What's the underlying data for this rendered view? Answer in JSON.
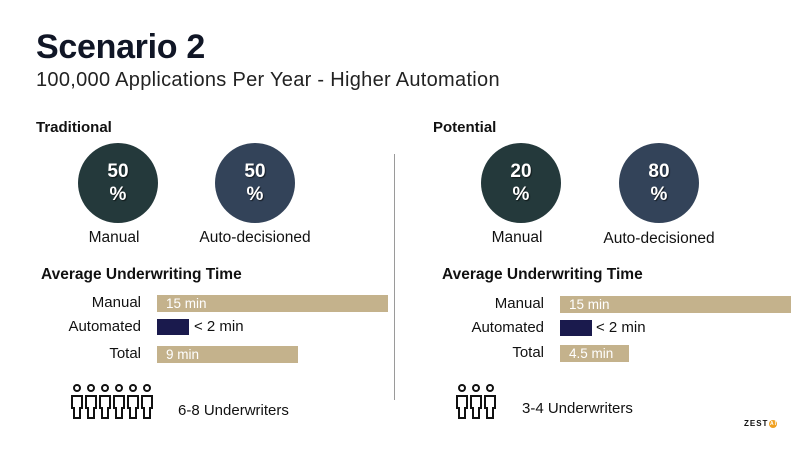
{
  "header": {
    "title": "Scenario 2",
    "subtitle": "100,000 Applications Per Year - Higher Automation"
  },
  "colors": {
    "manual_circle": "#24393b",
    "auto_circle": "#334359",
    "time_bar": "#c4b28c",
    "automated_bar": "#1a1a4d",
    "logo_accent": "#f0a020"
  },
  "traditional": {
    "heading": "Traditional",
    "manual_pct": "50",
    "auto_pct": "50",
    "pct_symbol": "%",
    "manual_label": "Manual",
    "auto_label": "Auto-decisioned",
    "avg_heading": "Average Underwriting Time",
    "rows": {
      "manual_label": "Manual",
      "manual_value": "15 min",
      "automated_label": "Automated",
      "automated_value": "< 2 min",
      "total_label": "Total",
      "total_value": "9 min"
    },
    "underwriters": "6-8 Underwriters",
    "icon": "six-people-icon"
  },
  "potential": {
    "heading": "Potential",
    "manual_pct": "20",
    "auto_pct": "80",
    "pct_symbol": "%",
    "manual_label": "Manual",
    "auto_label": "Auto-decisioned",
    "avg_heading": "Average Underwriting Time",
    "rows": {
      "manual_label": "Manual",
      "manual_value": "15 min",
      "automated_label": "Automated",
      "automated_value": "< 2 min",
      "total_label": "Total",
      "total_value": "4.5 min"
    },
    "underwriters": "3-4 Underwriters",
    "icon": "three-people-icon"
  },
  "logo": {
    "text": "ZEST",
    "mark": "AI"
  }
}
